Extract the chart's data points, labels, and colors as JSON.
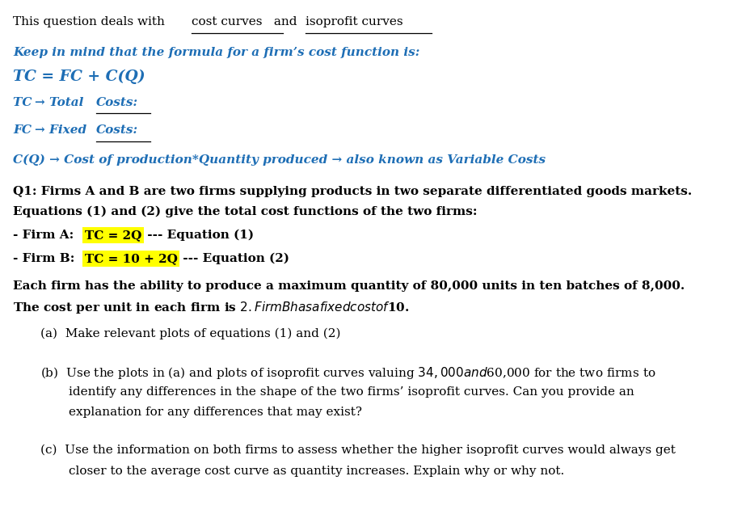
{
  "bg_color": "#ffffff",
  "figsize": [
    9.03,
    6.57
  ],
  "dpi": 100,
  "blue_color": "#1e6eb5",
  "yellow_highlight": "#ffff00",
  "black_color": "#000000",
  "line1_plain": "This question deals with ",
  "line1_ul1": "cost curves",
  "line1_mid": " and ",
  "line1_ul2": "isoprofit curves",
  "line2": "Keep in mind that the formula for a firm’s cost function is:",
  "line3": "TC = FC + C(Q)",
  "line4a": "TC ",
  "line4b": "→ Total ",
  "line4c": "Costs:",
  "line5a": "FC ",
  "line5b": "→ Fixed ",
  "line5c": "Costs:",
  "line6": "C(Q) → Cost of production*Quantity produced → also known as Variable Costs",
  "line7": "Q1: Firms A and B are two firms supplying products in two separate differentiated goods markets.",
  "line8": "Equations (1) and (2) give the total cost functions of the two firms:",
  "line9a": "- Firm A: ",
  "line9b": "TC = 2Q",
  "line9c": " --- Equation (1)",
  "line10a": "- Firm B: ",
  "line10b": "TC = 10 + 2Q",
  "line10c": " --- Equation (2)",
  "line11": "Each firm has the ability to produce a maximum quantity of 80,000 units in ten batches of 8,000.",
  "line12": "The cost per unit in each firm is $2. Firm B has a fixed cost of $10.",
  "line13": "(a)  Make relevant plots of equations (1) and (2)",
  "line14": "(b)  Use the plots in (a) and plots of isoprofit curves valuing $34,000 and $60,000 for the two firms to",
  "line15": "identify any differences in the shape of the two firms’ isoprofit curves. Can you provide an",
  "line16": "explanation for any differences that may exist?",
  "line17": "(c)  Use the information on both firms to assess whether the higher isoprofit curves would always get",
  "line18": "closer to the average cost curve as quantity increases. Explain why or why not."
}
